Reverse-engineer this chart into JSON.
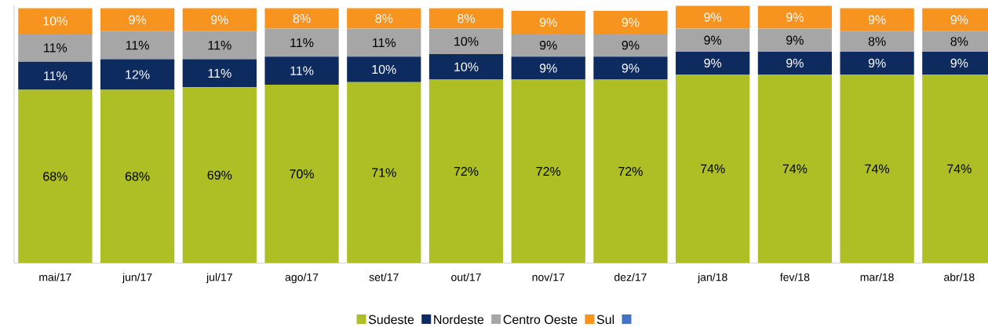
{
  "chart_data": {
    "type": "bar",
    "stacked": true,
    "data_labels": true,
    "legend": "bottom",
    "categories": [
      "mai/17",
      "jun/17",
      "jul/17",
      "ago/17",
      "set/17",
      "out/17",
      "nov/17",
      "dez/17",
      "jan/18",
      "fev/18",
      "mar/18",
      "abr/18"
    ],
    "series": [
      {
        "name": "Sudeste",
        "color": "#adbf24",
        "values": [
          68,
          68,
          69,
          70,
          71,
          72,
          72,
          72,
          74,
          74,
          74,
          74
        ],
        "value_labels": [
          "68%",
          "68%",
          "69%",
          "70%",
          "71%",
          "72%",
          "72%",
          "72%",
          "74%",
          "74%",
          "74%",
          "74%"
        ]
      },
      {
        "name": "Nordeste",
        "color": "#0d2b5e",
        "values": [
          11,
          12,
          11,
          11,
          10,
          10,
          9,
          9,
          9,
          9,
          9,
          9
        ],
        "value_labels": [
          "11%",
          "12%",
          "11%",
          "11%",
          "10%",
          "10%",
          "9%",
          "9%",
          "9%",
          "9%",
          "9%",
          "9%"
        ]
      },
      {
        "name": "Centro Oeste",
        "color": "#a6a6a6",
        "values": [
          11,
          11,
          11,
          11,
          11,
          10,
          9,
          9,
          9,
          9,
          8,
          8
        ],
        "value_labels": [
          "11%",
          "11%",
          "11%",
          "11%",
          "11%",
          "10%",
          "9%",
          "9%",
          "9%",
          "9%",
          "8%",
          "8%"
        ]
      },
      {
        "name": "Sul",
        "color": "#f79420",
        "values": [
          10,
          9,
          9,
          8,
          8,
          8,
          9,
          9,
          9,
          9,
          9,
          9
        ],
        "value_labels": [
          "10%",
          "9%",
          "9%",
          "8%",
          "8%",
          "8%",
          "9%",
          "9%",
          "9%",
          "9%",
          "9%",
          "9%"
        ]
      },
      {
        "color": "#4472c4",
        "values": [
          null,
          null,
          null,
          null,
          null,
          null,
          null,
          null,
          null,
          null,
          null,
          null
        ]
      }
    ]
  }
}
